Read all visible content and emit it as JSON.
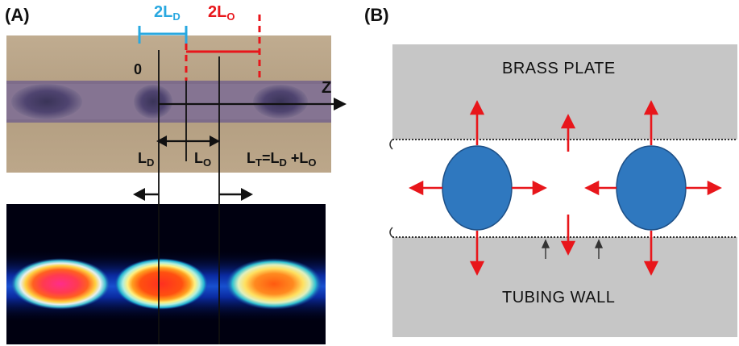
{
  "panel_a": {
    "label": "(A)",
    "twoLD": {
      "main": "2L",
      "sub": "D"
    },
    "twoLO": {
      "main": "2L",
      "sub": "O"
    },
    "zero": "0",
    "axis_z": "Z",
    "LD": {
      "main": "L",
      "sub": "D"
    },
    "LO": {
      "main": "L",
      "sub": "O"
    },
    "LT": {
      "t1": "L",
      "s1": "T",
      "t2": "=L",
      "s2": "D",
      "t3": " +L",
      "s3": "O"
    }
  },
  "panel_b": {
    "label": "(B)",
    "top_caption": "BRASS PLATE",
    "bottom_caption": "TUBING WALL"
  },
  "colors": {
    "cyan": "#29a8e0",
    "red": "#e8161b",
    "droplet_blue": "#2f78bf",
    "gray": "#c6c6c6",
    "brown": "#b7a58b"
  }
}
